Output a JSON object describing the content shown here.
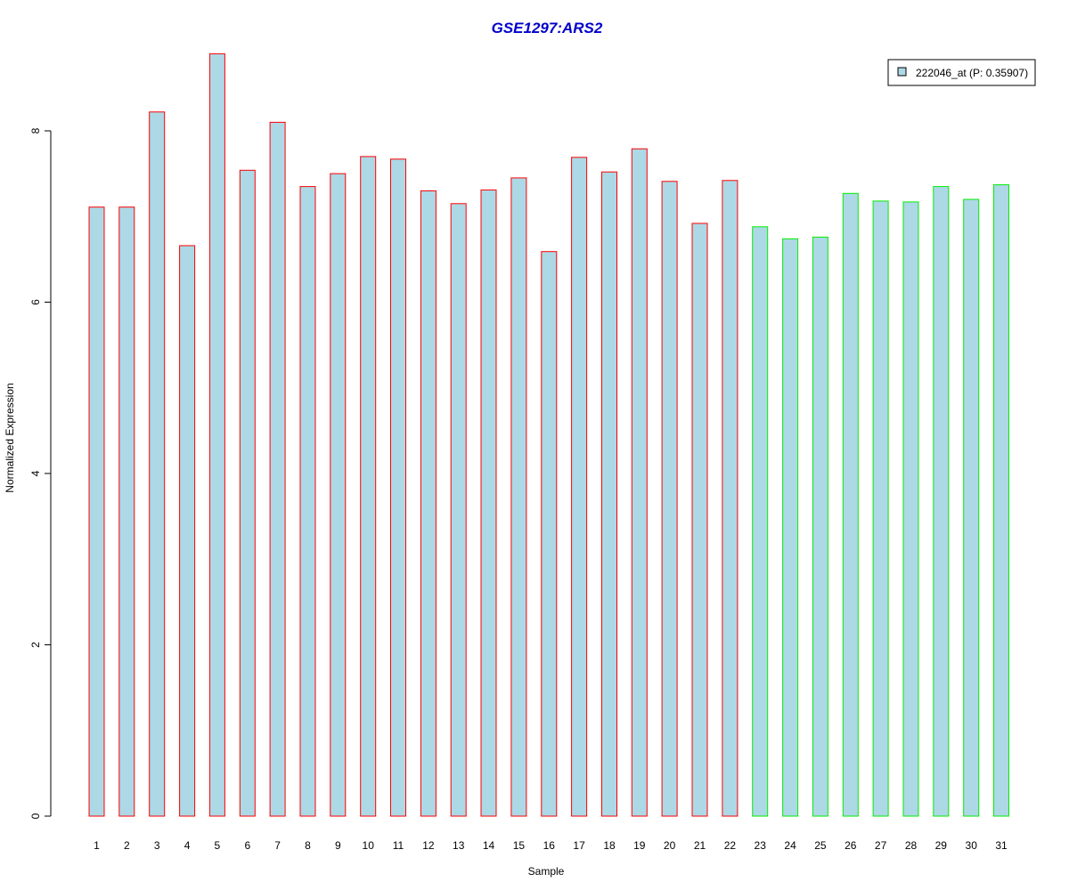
{
  "chart_data": {
    "type": "bar",
    "title": "GSE1297:ARS2",
    "xlabel": "Sample",
    "ylabel": "Normalized Expression",
    "ylim": [
      0,
      8.9
    ],
    "yticks": [
      "0",
      "2",
      "4",
      "6",
      "8"
    ],
    "grid": false,
    "legend_position": "top-right",
    "categories": [
      "1",
      "2",
      "3",
      "4",
      "5",
      "6",
      "7",
      "8",
      "9",
      "10",
      "11",
      "12",
      "13",
      "14",
      "15",
      "16",
      "17",
      "18",
      "19",
      "20",
      "21",
      "22",
      "23",
      "24",
      "25",
      "26",
      "27",
      "28",
      "29",
      "30",
      "31"
    ],
    "series": [
      {
        "name": "222046_at (P: 0.35907)",
        "values": [
          7.11,
          7.11,
          8.22,
          6.66,
          8.9,
          7.54,
          8.1,
          7.35,
          7.5,
          7.7,
          7.67,
          7.3,
          7.15,
          7.31,
          7.45,
          6.59,
          7.69,
          7.52,
          7.79,
          7.41,
          6.92,
          7.42,
          6.88,
          6.74,
          6.76,
          7.27,
          7.18,
          7.17,
          7.35,
          7.2,
          7.37
        ]
      }
    ],
    "groups": [
      {
        "range": [
          1,
          22
        ],
        "border_color": "#ff0000"
      },
      {
        "range": [
          23,
          31
        ],
        "border_color": "#00ee00"
      }
    ],
    "colors": {
      "bar_fill": "#add8e6",
      "title": "#0000cc",
      "axis": "#000000"
    }
  }
}
